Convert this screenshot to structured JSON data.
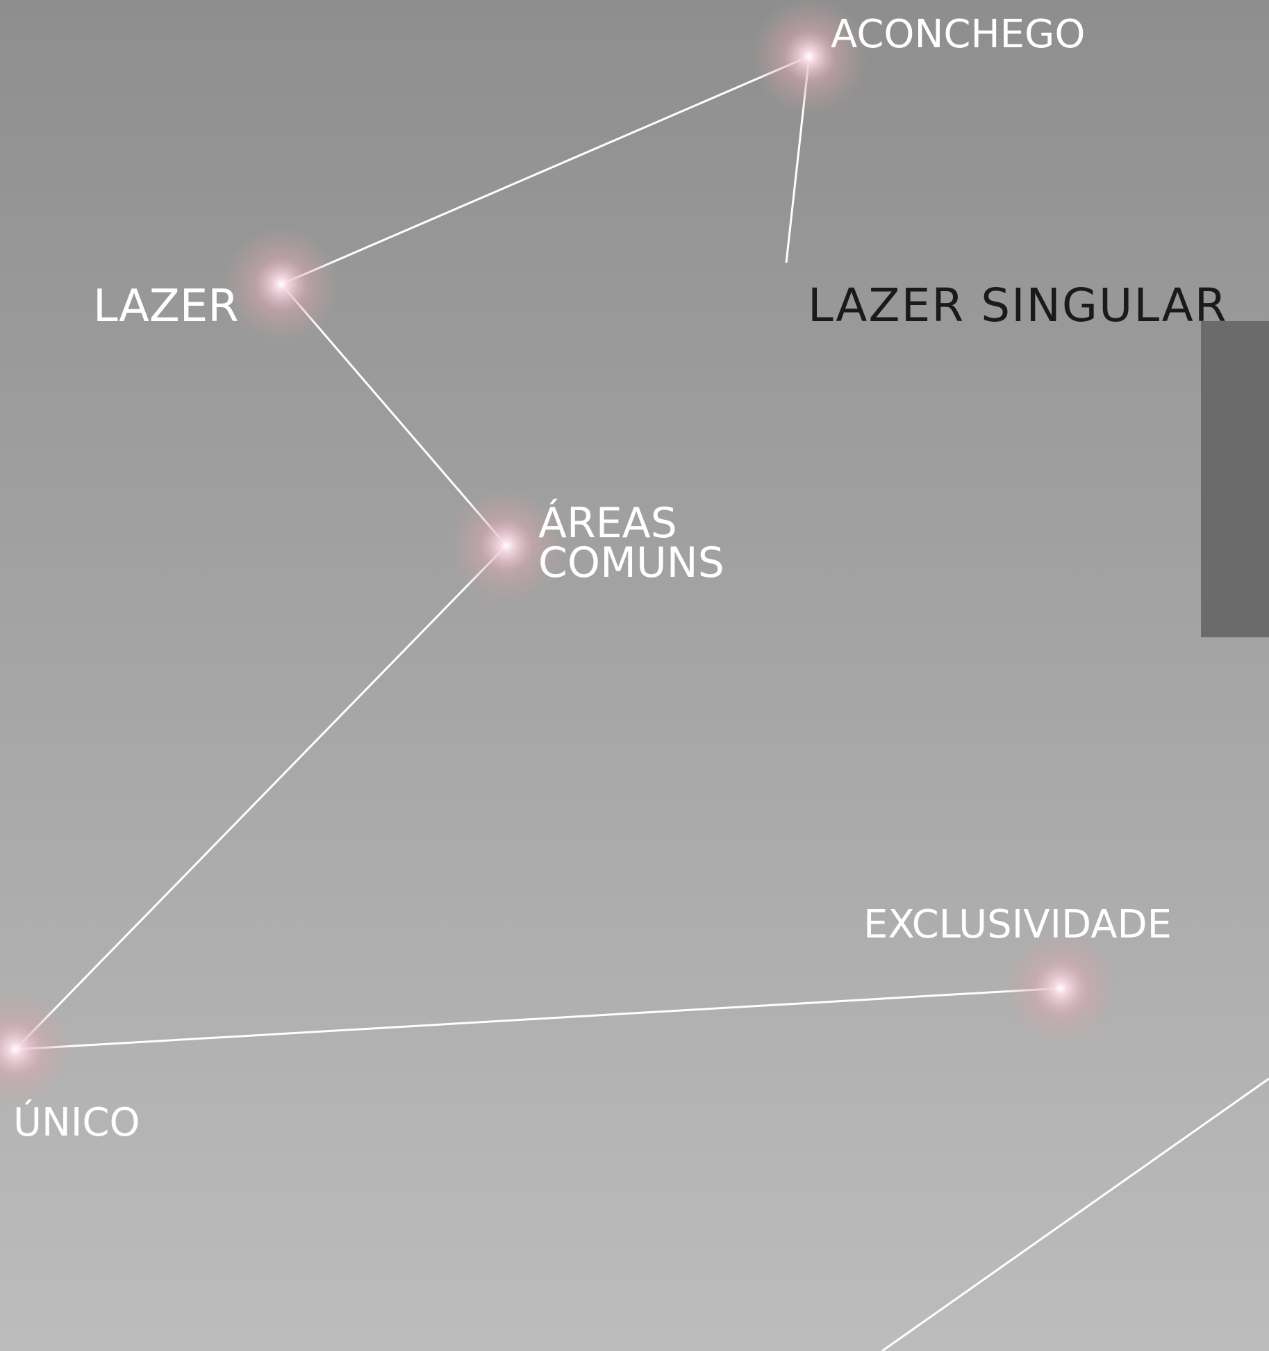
{
  "labels": {
    "aconchego": "ACONCHEGO",
    "lazer": "LAZER",
    "areas": "ÁREAS",
    "comuns": "COMUNS",
    "unico": "ÚNICO",
    "exclusividade": "EXCLUSIVIDADE",
    "title": "LAZER SINGULAR"
  }
}
